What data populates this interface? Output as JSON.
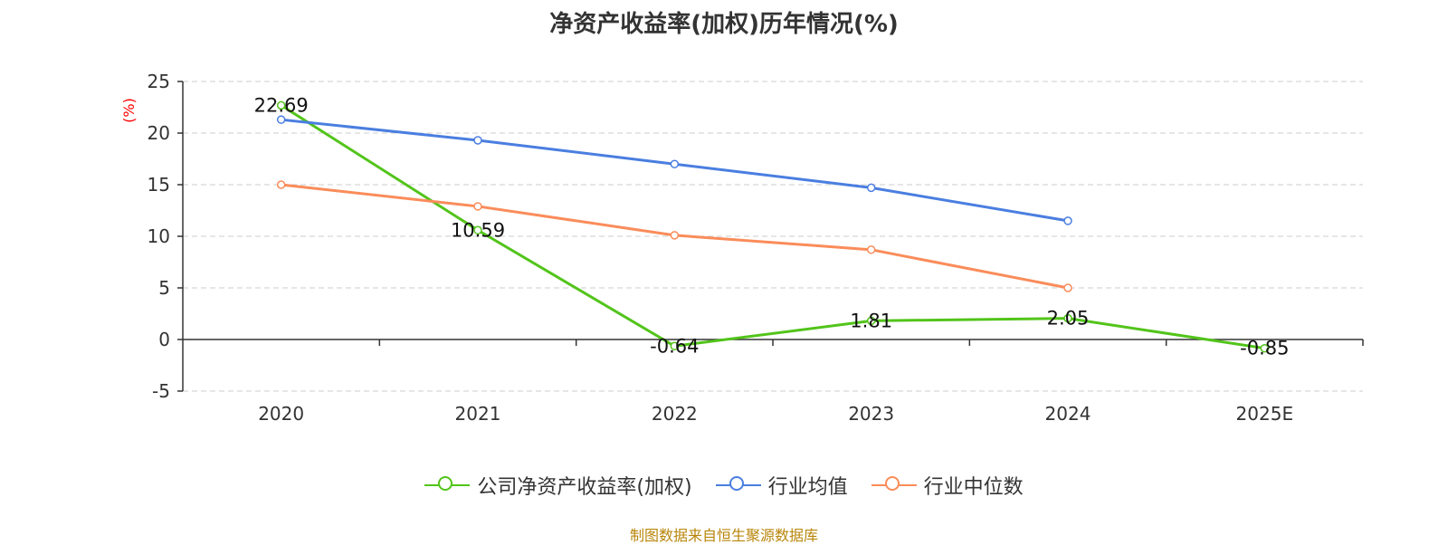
{
  "title": "净资产收益率(加权)历年情况(%)",
  "source": "制图数据来自恒生聚源数据库",
  "colors": {
    "company": "#52c41a",
    "industry_avg": "#4a7ee0",
    "industry_median": "#fa8c5a",
    "axis": "#333333",
    "grid": "#cccccc",
    "ylabel": "#ff0000"
  },
  "chart_data": {
    "type": "line",
    "title": "净资产收益率(加权)历年情况(%)",
    "ylabel": "(%)",
    "xlabel": "",
    "categories": [
      "2020",
      "2021",
      "2022",
      "2023",
      "2024",
      "2025E"
    ],
    "ylim": [
      -5,
      25
    ],
    "yticks": [
      -5,
      0,
      5,
      10,
      15,
      20,
      25
    ],
    "grid": true,
    "legend": "bottom",
    "series": [
      {
        "name": "公司净资产收益率(加权)",
        "color": "#52c41a",
        "values": [
          22.69,
          10.59,
          -0.64,
          1.81,
          2.05,
          -0.85
        ],
        "labels": [
          "22.69",
          "10.59",
          "-0.64",
          "1.81",
          "2.05",
          "-0.85"
        ]
      },
      {
        "name": "行业均值",
        "color": "#4a7ee0",
        "values": [
          21.3,
          19.3,
          17.0,
          14.7,
          11.5,
          null
        ]
      },
      {
        "name": "行业中位数",
        "color": "#fa8c5a",
        "values": [
          15.0,
          12.9,
          10.1,
          8.7,
          5.0,
          null
        ]
      }
    ]
  }
}
